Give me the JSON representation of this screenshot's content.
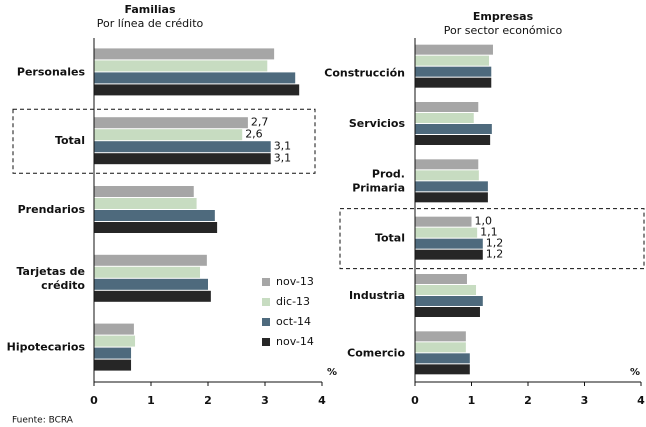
{
  "chart_data": [
    {
      "type": "barh",
      "title": "Familias",
      "subtitle": "Por línea de crédito",
      "xlabel": "%",
      "categories": [
        "Personales",
        "Total",
        "Prendarios",
        "Tarjetas de crédito",
        "Hipotecarios"
      ],
      "highlight": "Total",
      "series": [
        {
          "name": "nov-13",
          "color": "#a6a6a6",
          "values": [
            3.16,
            2.7,
            1.75,
            1.98,
            0.7
          ],
          "value_labels": [
            null,
            "2,7",
            null,
            null,
            null
          ]
        },
        {
          "name": "dic-13",
          "color": "#c7dcc1",
          "values": [
            3.04,
            2.6,
            1.8,
            1.86,
            0.72
          ],
          "value_labels": [
            null,
            "2,6",
            null,
            null,
            null
          ]
        },
        {
          "name": "oct-14",
          "color": "#4e6a7d",
          "values": [
            3.53,
            3.1,
            2.12,
            2.0,
            0.65
          ],
          "value_labels": [
            null,
            "3,1",
            null,
            null,
            null
          ]
        },
        {
          "name": "nov-14",
          "color": "#262626",
          "values": [
            3.6,
            3.1,
            2.16,
            2.05,
            0.65
          ],
          "value_labels": [
            null,
            "3,1",
            null,
            null,
            null
          ]
        }
      ],
      "xlim": [
        0,
        4
      ],
      "xticks": [
        0,
        1,
        2,
        3,
        4
      ],
      "legend": "lower right"
    },
    {
      "type": "barh",
      "title": "Empresas",
      "subtitle": "Por sector económico",
      "xlabel": "%",
      "categories": [
        "Construcción",
        "Servicios",
        "Prod. Primaria",
        "Total",
        "Industria",
        "Comercio"
      ],
      "highlight": "Total",
      "series": [
        {
          "name": "nov-13",
          "color": "#a6a6a6",
          "values": [
            1.38,
            1.12,
            1.12,
            1.0,
            0.92,
            0.9
          ],
          "value_labels": [
            null,
            null,
            null,
            "1,0",
            null,
            null
          ]
        },
        {
          "name": "dic-13",
          "color": "#c7dcc1",
          "values": [
            1.31,
            1.04,
            1.13,
            1.1,
            1.08,
            0.9
          ],
          "value_labels": [
            null,
            null,
            null,
            "1,1",
            null,
            null
          ]
        },
        {
          "name": "oct-14",
          "color": "#4e6a7d",
          "values": [
            1.35,
            1.36,
            1.29,
            1.2,
            1.2,
            0.97
          ],
          "value_labels": [
            null,
            null,
            null,
            "1,2",
            null,
            null
          ]
        },
        {
          "name": "nov-14",
          "color": "#262626",
          "values": [
            1.35,
            1.33,
            1.29,
            1.2,
            1.15,
            0.97
          ],
          "value_labels": [
            null,
            null,
            null,
            "1,2",
            null,
            null
          ]
        }
      ],
      "xlim": [
        0,
        4
      ],
      "xticks": [
        0,
        1,
        2,
        3,
        4
      ]
    }
  ],
  "footer": "Fuente: BCRA"
}
